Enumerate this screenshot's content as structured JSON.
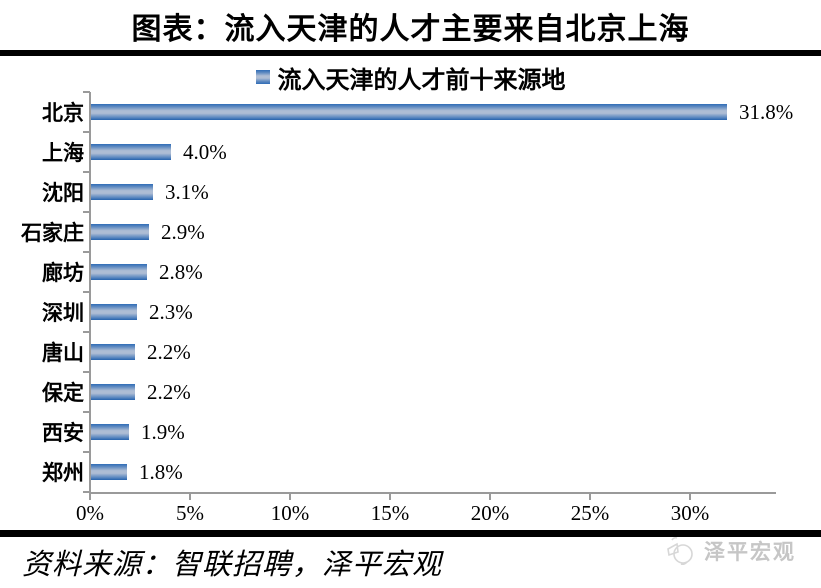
{
  "header": {
    "title": "图表：流入天津的人才主要来自北京上海"
  },
  "chart_data": {
    "type": "bar",
    "orientation": "horizontal",
    "legend": "流入天津的人才前十来源地",
    "legend_position": "top",
    "categories": [
      "北京",
      "上海",
      "沈阳",
      "石家庄",
      "廊坊",
      "深圳",
      "唐山",
      "保定",
      "西安",
      "郑州"
    ],
    "values": [
      31.8,
      4.0,
      3.1,
      2.9,
      2.8,
      2.3,
      2.2,
      2.2,
      1.9,
      1.8
    ],
    "value_labels": [
      "31.8%",
      "4.0%",
      "3.1%",
      "2.9%",
      "2.8%",
      "2.3%",
      "2.2%",
      "2.2%",
      "1.9%",
      "1.8%"
    ],
    "x_tick_labels": [
      "0%",
      "5%",
      "10%",
      "15%",
      "20%",
      "25%",
      "30%"
    ],
    "x_tick_values": [
      0,
      5,
      10,
      15,
      20,
      25,
      30
    ],
    "xlim": [
      0,
      34.25
    ],
    "grid": false,
    "xlabel": "",
    "ylabel": ""
  },
  "footer": {
    "source": "资料来源：智联招聘，泽平宏观",
    "watermark": "泽平宏观"
  },
  "colors": {
    "bar_edge": "#2F6DB7",
    "bar_edge_bottom": "#2763AD",
    "bar_intermediate": "#5C88C0",
    "bar_mid_light": "#AEBDD4",
    "axis": "#9A9A9A",
    "rule": "#000000",
    "watermark": "#C6C6C6",
    "text": "#000000"
  }
}
